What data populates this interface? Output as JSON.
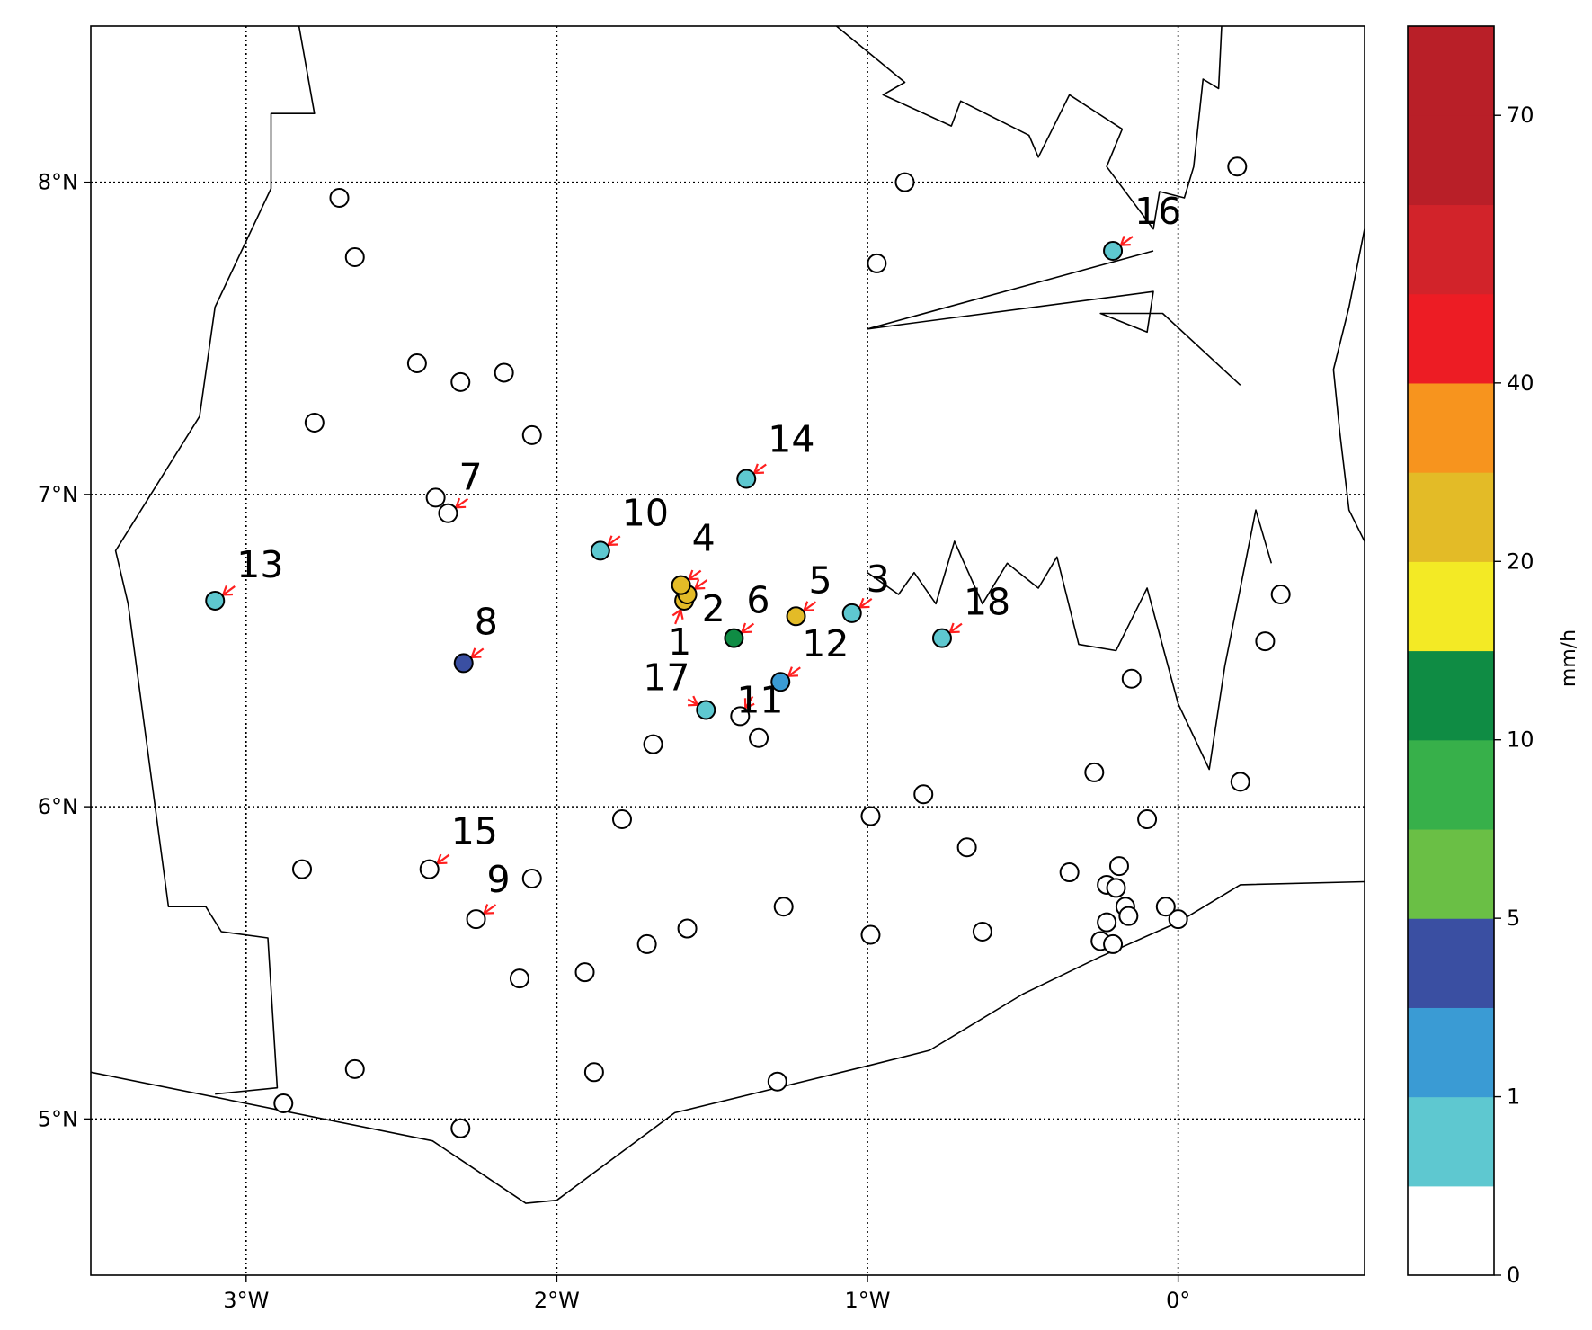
{
  "map": {
    "extent": {
      "lon": [
        -3.5,
        0.6
      ],
      "lat": [
        4.5,
        8.5
      ]
    },
    "lon_ticks": [
      {
        "value": -3,
        "label": "3°W"
      },
      {
        "value": -2,
        "label": "2°W"
      },
      {
        "value": -1,
        "label": "1°W"
      },
      {
        "value": 0,
        "label": "0°"
      }
    ],
    "lat_ticks": [
      {
        "value": 8,
        "label": "8°N"
      },
      {
        "value": 7,
        "label": "7°N"
      },
      {
        "value": 6,
        "label": "6°N"
      },
      {
        "value": 5,
        "label": "5°N"
      }
    ],
    "grid": true,
    "boundaries": {
      "west_border": [
        [
          -2.83,
          8.5
        ],
        [
          -2.78,
          8.22
        ],
        [
          -2.92,
          8.22
        ],
        [
          -2.92,
          7.98
        ],
        [
          -3.1,
          7.6
        ],
        [
          -3.15,
          7.25
        ],
        [
          -3.42,
          6.82
        ],
        [
          -3.38,
          6.65
        ],
        [
          -3.25,
          5.68
        ],
        [
          -3.13,
          5.68
        ],
        [
          -3.08,
          5.6
        ],
        [
          -2.93,
          5.58
        ],
        [
          -2.9,
          5.1
        ],
        [
          -3.1,
          5.08
        ]
      ],
      "coastline": [
        [
          -3.5,
          5.15
        ],
        [
          -2.4,
          4.93
        ],
        [
          -2.1,
          4.73
        ],
        [
          -2.0,
          4.74
        ],
        [
          -1.62,
          5.02
        ],
        [
          -1.0,
          5.17
        ],
        [
          -0.8,
          5.22
        ],
        [
          -0.5,
          5.4
        ],
        [
          -0.25,
          5.52
        ],
        [
          0.0,
          5.63
        ],
        [
          0.2,
          5.75
        ],
        [
          0.6,
          5.76
        ]
      ],
      "volta_north": [
        [
          -1.1,
          8.5
        ],
        [
          -0.88,
          8.32
        ],
        [
          -0.95,
          8.28
        ],
        [
          -0.73,
          8.18
        ],
        [
          -0.7,
          8.26
        ],
        [
          -0.48,
          8.15
        ],
        [
          -0.45,
          8.08
        ],
        [
          -0.35,
          8.28
        ],
        [
          -0.18,
          8.17
        ],
        [
          -0.23,
          8.05
        ],
        [
          -0.08,
          7.85
        ],
        [
          -0.06,
          7.97
        ],
        [
          0.02,
          7.95
        ],
        [
          0.05,
          8.05
        ],
        [
          0.08,
          8.33
        ],
        [
          0.13,
          8.3
        ],
        [
          0.14,
          8.5
        ]
      ],
      "volta_arm": [
        [
          -0.08,
          7.78
        ],
        [
          -1.0,
          7.53
        ],
        [
          -0.08,
          7.65
        ],
        [
          -0.1,
          7.52
        ],
        [
          -0.25,
          7.58
        ],
        [
          -0.05,
          7.58
        ],
        [
          0.2,
          7.35
        ]
      ],
      "volta_south": [
        [
          -1.0,
          6.75
        ],
        [
          -0.9,
          6.68
        ],
        [
          -0.85,
          6.75
        ],
        [
          -0.78,
          6.65
        ],
        [
          -0.72,
          6.85
        ],
        [
          -0.63,
          6.65
        ],
        [
          -0.55,
          6.78
        ],
        [
          -0.45,
          6.7
        ],
        [
          -0.39,
          6.8
        ],
        [
          -0.32,
          6.52
        ],
        [
          -0.2,
          6.5
        ],
        [
          -0.1,
          6.7
        ],
        [
          0.0,
          6.33
        ],
        [
          0.1,
          6.12
        ],
        [
          0.15,
          6.45
        ],
        [
          0.2,
          6.7
        ],
        [
          0.25,
          6.95
        ],
        [
          0.3,
          6.78
        ]
      ],
      "east_border": [
        [
          0.6,
          7.85
        ],
        [
          0.55,
          7.6
        ],
        [
          0.5,
          7.4
        ],
        [
          0.52,
          7.2
        ],
        [
          0.55,
          6.95
        ],
        [
          0.6,
          6.85
        ]
      ]
    }
  },
  "chart_data": {
    "type": "scatter",
    "colorbar": {
      "title": "mm/h",
      "bounds": [
        0,
        0.5,
        1,
        2,
        5,
        7,
        10,
        15,
        20,
        30,
        40,
        50,
        60,
        70,
        80
      ],
      "colors": [
        "#ffffff",
        "#5ec8d0",
        "#3a9bd4",
        "#3a4fa2",
        "#6abf45",
        "#37b04a",
        "#0f8c44",
        "#f3ea25",
        "#e3bb27",
        "#f7941e",
        "#ed1c24",
        "#d2232a",
        "#b91f28",
        "#b91f28"
      ],
      "tick_values": [
        0,
        1,
        5,
        10,
        20,
        40,
        70
      ],
      "tick_labels": [
        "0",
        "1",
        "5",
        "10",
        "20",
        "40",
        "70"
      ]
    },
    "labeled_stations": [
      {
        "id": "1",
        "lon": -1.59,
        "lat": 6.66,
        "color": "#e3bb27"
      },
      {
        "id": "2",
        "lon": -1.58,
        "lat": 6.68,
        "color": "#e3bb27"
      },
      {
        "id": "3",
        "lon": -1.05,
        "lat": 6.62,
        "color": "#5ec8d0"
      },
      {
        "id": "4",
        "lon": -1.6,
        "lat": 6.71,
        "color": "#e3bb27"
      },
      {
        "id": "5",
        "lon": -1.23,
        "lat": 6.61,
        "color": "#e3bb27"
      },
      {
        "id": "6",
        "lon": -1.43,
        "lat": 6.54,
        "color": "#0f8c44"
      },
      {
        "id": "7",
        "lon": -2.35,
        "lat": 6.94,
        "color": "none"
      },
      {
        "id": "8",
        "lon": -2.3,
        "lat": 6.46,
        "color": "#3a4fa2"
      },
      {
        "id": "9",
        "lon": -2.26,
        "lat": 5.64,
        "color": "none"
      },
      {
        "id": "10",
        "lon": -1.86,
        "lat": 6.82,
        "color": "#5ec8d0"
      },
      {
        "id": "11",
        "lon": -1.41,
        "lat": 6.29,
        "color": "none"
      },
      {
        "id": "12",
        "lon": -1.28,
        "lat": 6.4,
        "color": "#3a9bd4"
      },
      {
        "id": "13",
        "lon": -3.1,
        "lat": 6.66,
        "color": "#5ec8d0"
      },
      {
        "id": "14",
        "lon": -1.39,
        "lat": 7.05,
        "color": "#5ec8d0"
      },
      {
        "id": "15",
        "lon": -2.41,
        "lat": 5.8,
        "color": "none"
      },
      {
        "id": "16",
        "lon": -0.21,
        "lat": 7.78,
        "color": "#5ec8d0"
      },
      {
        "id": "17",
        "lon": -1.52,
        "lat": 6.31,
        "color": "#5ec8d0"
      },
      {
        "id": "18",
        "lon": -0.76,
        "lat": 6.54,
        "color": "#5ec8d0"
      }
    ],
    "other_stations": [
      [
        -2.7,
        7.95
      ],
      [
        -2.65,
        7.76
      ],
      [
        -2.78,
        7.23
      ],
      [
        -2.45,
        7.42
      ],
      [
        -2.31,
        7.36
      ],
      [
        -2.17,
        7.39
      ],
      [
        -2.08,
        7.19
      ],
      [
        -2.39,
        6.99
      ],
      [
        -0.88,
        8.0
      ],
      [
        -0.97,
        7.74
      ],
      [
        0.19,
        8.05
      ],
      [
        0.33,
        6.68
      ],
      [
        0.28,
        6.53
      ],
      [
        -0.15,
        6.41
      ],
      [
        -0.27,
        6.11
      ],
      [
        0.2,
        6.08
      ],
      [
        -1.69,
        6.2
      ],
      [
        -1.35,
        6.22
      ],
      [
        -0.82,
        6.04
      ],
      [
        -0.99,
        5.97
      ],
      [
        -1.79,
        5.96
      ],
      [
        -2.82,
        5.8
      ],
      [
        -2.08,
        5.77
      ],
      [
        -0.68,
        5.87
      ],
      [
        -0.35,
        5.79
      ],
      [
        -0.23,
        5.75
      ],
      [
        -0.19,
        5.81
      ],
      [
        -0.1,
        5.96
      ],
      [
        -0.2,
        5.74
      ],
      [
        -0.17,
        5.68
      ],
      [
        -0.16,
        5.65
      ],
      [
        -0.04,
        5.68
      ],
      [
        0.0,
        5.64
      ],
      [
        -0.23,
        5.63
      ],
      [
        -0.25,
        5.57
      ],
      [
        -0.21,
        5.56
      ],
      [
        -1.27,
        5.68
      ],
      [
        -1.58,
        5.61
      ],
      [
        -1.71,
        5.56
      ],
      [
        -0.99,
        5.59
      ],
      [
        -0.63,
        5.6
      ],
      [
        -1.91,
        5.47
      ],
      [
        -2.12,
        5.45
      ],
      [
        -1.88,
        5.15
      ],
      [
        -2.65,
        5.16
      ],
      [
        -1.29,
        5.12
      ],
      [
        -2.88,
        5.05
      ],
      [
        -2.31,
        4.97
      ]
    ]
  }
}
